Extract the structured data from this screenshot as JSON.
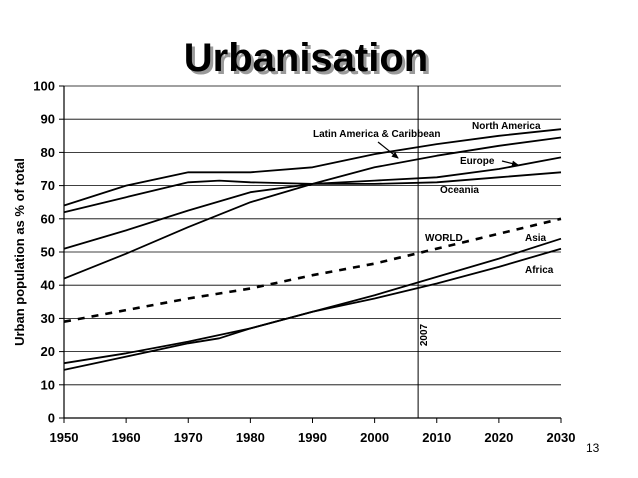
{
  "slide": {
    "page_number": "13"
  },
  "chart_data": {
    "type": "line",
    "title": "Urbanisation",
    "xlabel": "",
    "ylabel": "Urban population as % of total",
    "xlim": [
      1950,
      2030
    ],
    "ylim": [
      0,
      100
    ],
    "x_ticks": [
      1950,
      1960,
      1970,
      1980,
      1990,
      2000,
      2010,
      2020,
      2030
    ],
    "y_ticks": [
      0,
      10,
      20,
      30,
      40,
      50,
      60,
      70,
      80,
      90,
      100
    ],
    "grid": "horizontal",
    "marker_line": {
      "x": 2007,
      "label": "2007"
    },
    "series": [
      {
        "name": "North America",
        "style": "solid",
        "x": [
          1950,
          1960,
          1970,
          1980,
          1990,
          2000,
          2010,
          2020,
          2030
        ],
        "y": [
          64,
          70,
          74,
          74,
          75.5,
          79.5,
          82.5,
          85,
          87
        ]
      },
      {
        "name": "Latin America & Caribbean",
        "style": "solid",
        "x": [
          1950,
          1960,
          1970,
          1980,
          1990,
          2000,
          2010,
          2020,
          2030
        ],
        "y": [
          42,
          49.5,
          57.5,
          65,
          70.5,
          75.5,
          79,
          82,
          84.5
        ]
      },
      {
        "name": "Europe",
        "style": "solid",
        "x": [
          1950,
          1960,
          1970,
          1980,
          1990,
          2000,
          2010,
          2020,
          2030
        ],
        "y": [
          51,
          56.5,
          62.5,
          68,
          70.5,
          71.5,
          72.5,
          75,
          78.5
        ]
      },
      {
        "name": "Oceania",
        "style": "solid",
        "x": [
          1950,
          1960,
          1970,
          1975,
          1980,
          1990,
          2000,
          2010,
          2020,
          2030
        ],
        "y": [
          62,
          66.5,
          71,
          71.5,
          71,
          70.5,
          70.5,
          71,
          72.5,
          74
        ]
      },
      {
        "name": "WORLD",
        "style": "dashed",
        "x": [
          1950,
          1960,
          1970,
          1980,
          1990,
          2000,
          2010,
          2020,
          2030
        ],
        "y": [
          29,
          32.5,
          36,
          39,
          43,
          46.5,
          51,
          55.5,
          60
        ]
      },
      {
        "name": "Asia",
        "style": "solid",
        "x": [
          1950,
          1960,
          1970,
          1980,
          1990,
          2000,
          2010,
          2020,
          2030
        ],
        "y": [
          16.5,
          19.5,
          23,
          27,
          32,
          37,
          42.5,
          48,
          54
        ]
      },
      {
        "name": "Africa",
        "style": "solid",
        "x": [
          1950,
          1960,
          1970,
          1975,
          1980,
          1990,
          2000,
          2010,
          2020,
          2030
        ],
        "y": [
          14.5,
          18.5,
          22.5,
          24,
          27,
          32,
          36,
          40.5,
          45.5,
          51
        ]
      }
    ],
    "annotations": [
      {
        "text": "North America"
      },
      {
        "text": "Latin America & Caribbean"
      },
      {
        "text": "Europe"
      },
      {
        "text": "Oceania"
      },
      {
        "text": "WORLD"
      },
      {
        "text": "Asia"
      },
      {
        "text": "Africa"
      }
    ]
  }
}
